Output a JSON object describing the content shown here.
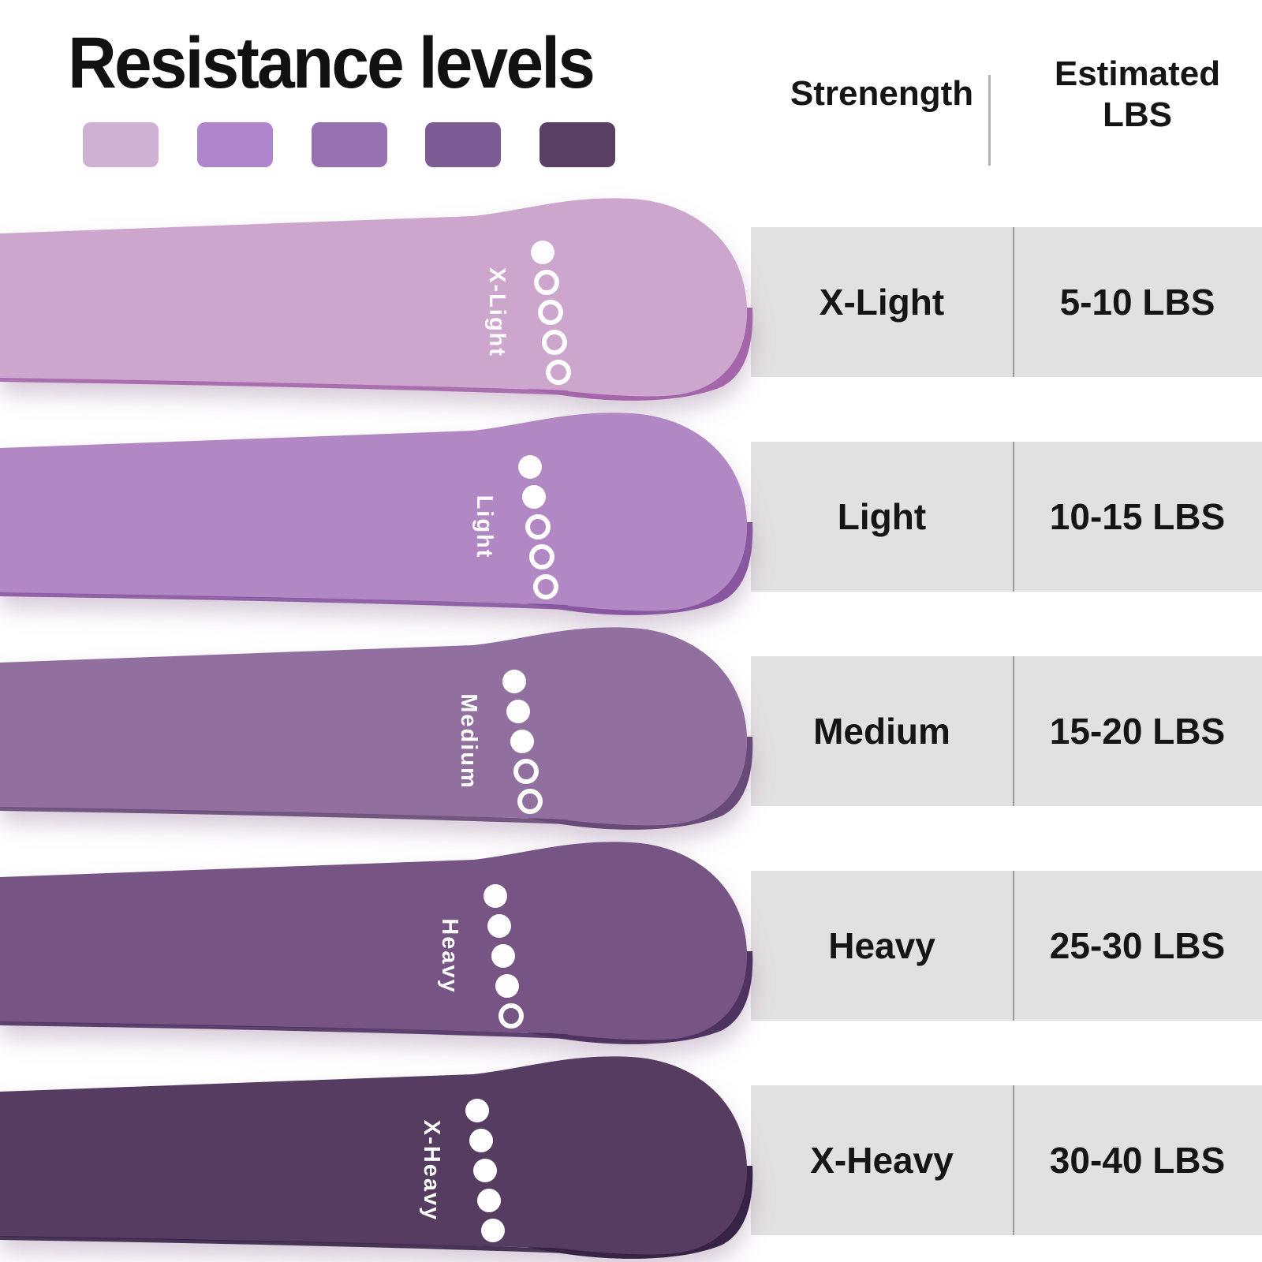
{
  "title": "Resistance levels",
  "palette": {
    "swatches": [
      "#cfb1d3",
      "#af85cb",
      "#9673b0",
      "#7d5c93",
      "#5a3f64"
    ]
  },
  "table": {
    "header": {
      "strength": "Strenength",
      "estimated_line1": "Estimated",
      "estimated_line2": "LBS"
    },
    "rows": [
      {
        "strength": "X-Light",
        "lbs": "5-10 LBS"
      },
      {
        "strength": "Light",
        "lbs": "10-15 LBS"
      },
      {
        "strength": "Medium",
        "lbs": "15-20 LBS"
      },
      {
        "strength": "Heavy",
        "lbs": "25-30 LBS"
      },
      {
        "strength": "X-Heavy",
        "lbs": "30-40 LBS"
      }
    ]
  },
  "bands": [
    {
      "label": "X-Light",
      "filled_dots": 1,
      "total_dots": 5,
      "color": "#cda6ce",
      "underside_color": "#a565ab"
    },
    {
      "label": "Light",
      "filled_dots": 2,
      "total_dots": 5,
      "color": "#b288c4",
      "underside_color": "#8857a0"
    },
    {
      "label": "Medium",
      "filled_dots": 3,
      "total_dots": 5,
      "color": "#91709f",
      "underside_color": "#674a77"
    },
    {
      "label": "Heavy",
      "filled_dots": 4,
      "total_dots": 5,
      "color": "#765585",
      "underside_color": "#4e3260"
    },
    {
      "label": "X-Heavy",
      "filled_dots": 5,
      "total_dots": 5,
      "color": "#563c60",
      "underside_color": "#382347"
    }
  ]
}
